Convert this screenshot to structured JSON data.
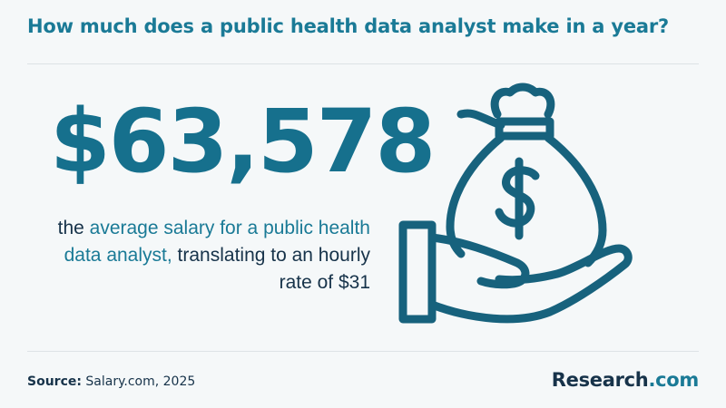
{
  "header": {
    "title": "How much does a public health data analyst make in a year?"
  },
  "main": {
    "amount": "$63,578",
    "description": {
      "part1": "the ",
      "highlight": "average salary for a public health data analyst,",
      "part2": " translating to an hourly rate of $31"
    },
    "illustration_icon": "hand-holding-money-bag-icon"
  },
  "footer": {
    "source_label": "Source:",
    "source_value": " Salary.com, 2025",
    "brand_main": "Research",
    "brand_accent": ".com"
  },
  "colors": {
    "accent": "#1a7a96",
    "dark": "#17334a",
    "background": "#f5f8f9"
  }
}
